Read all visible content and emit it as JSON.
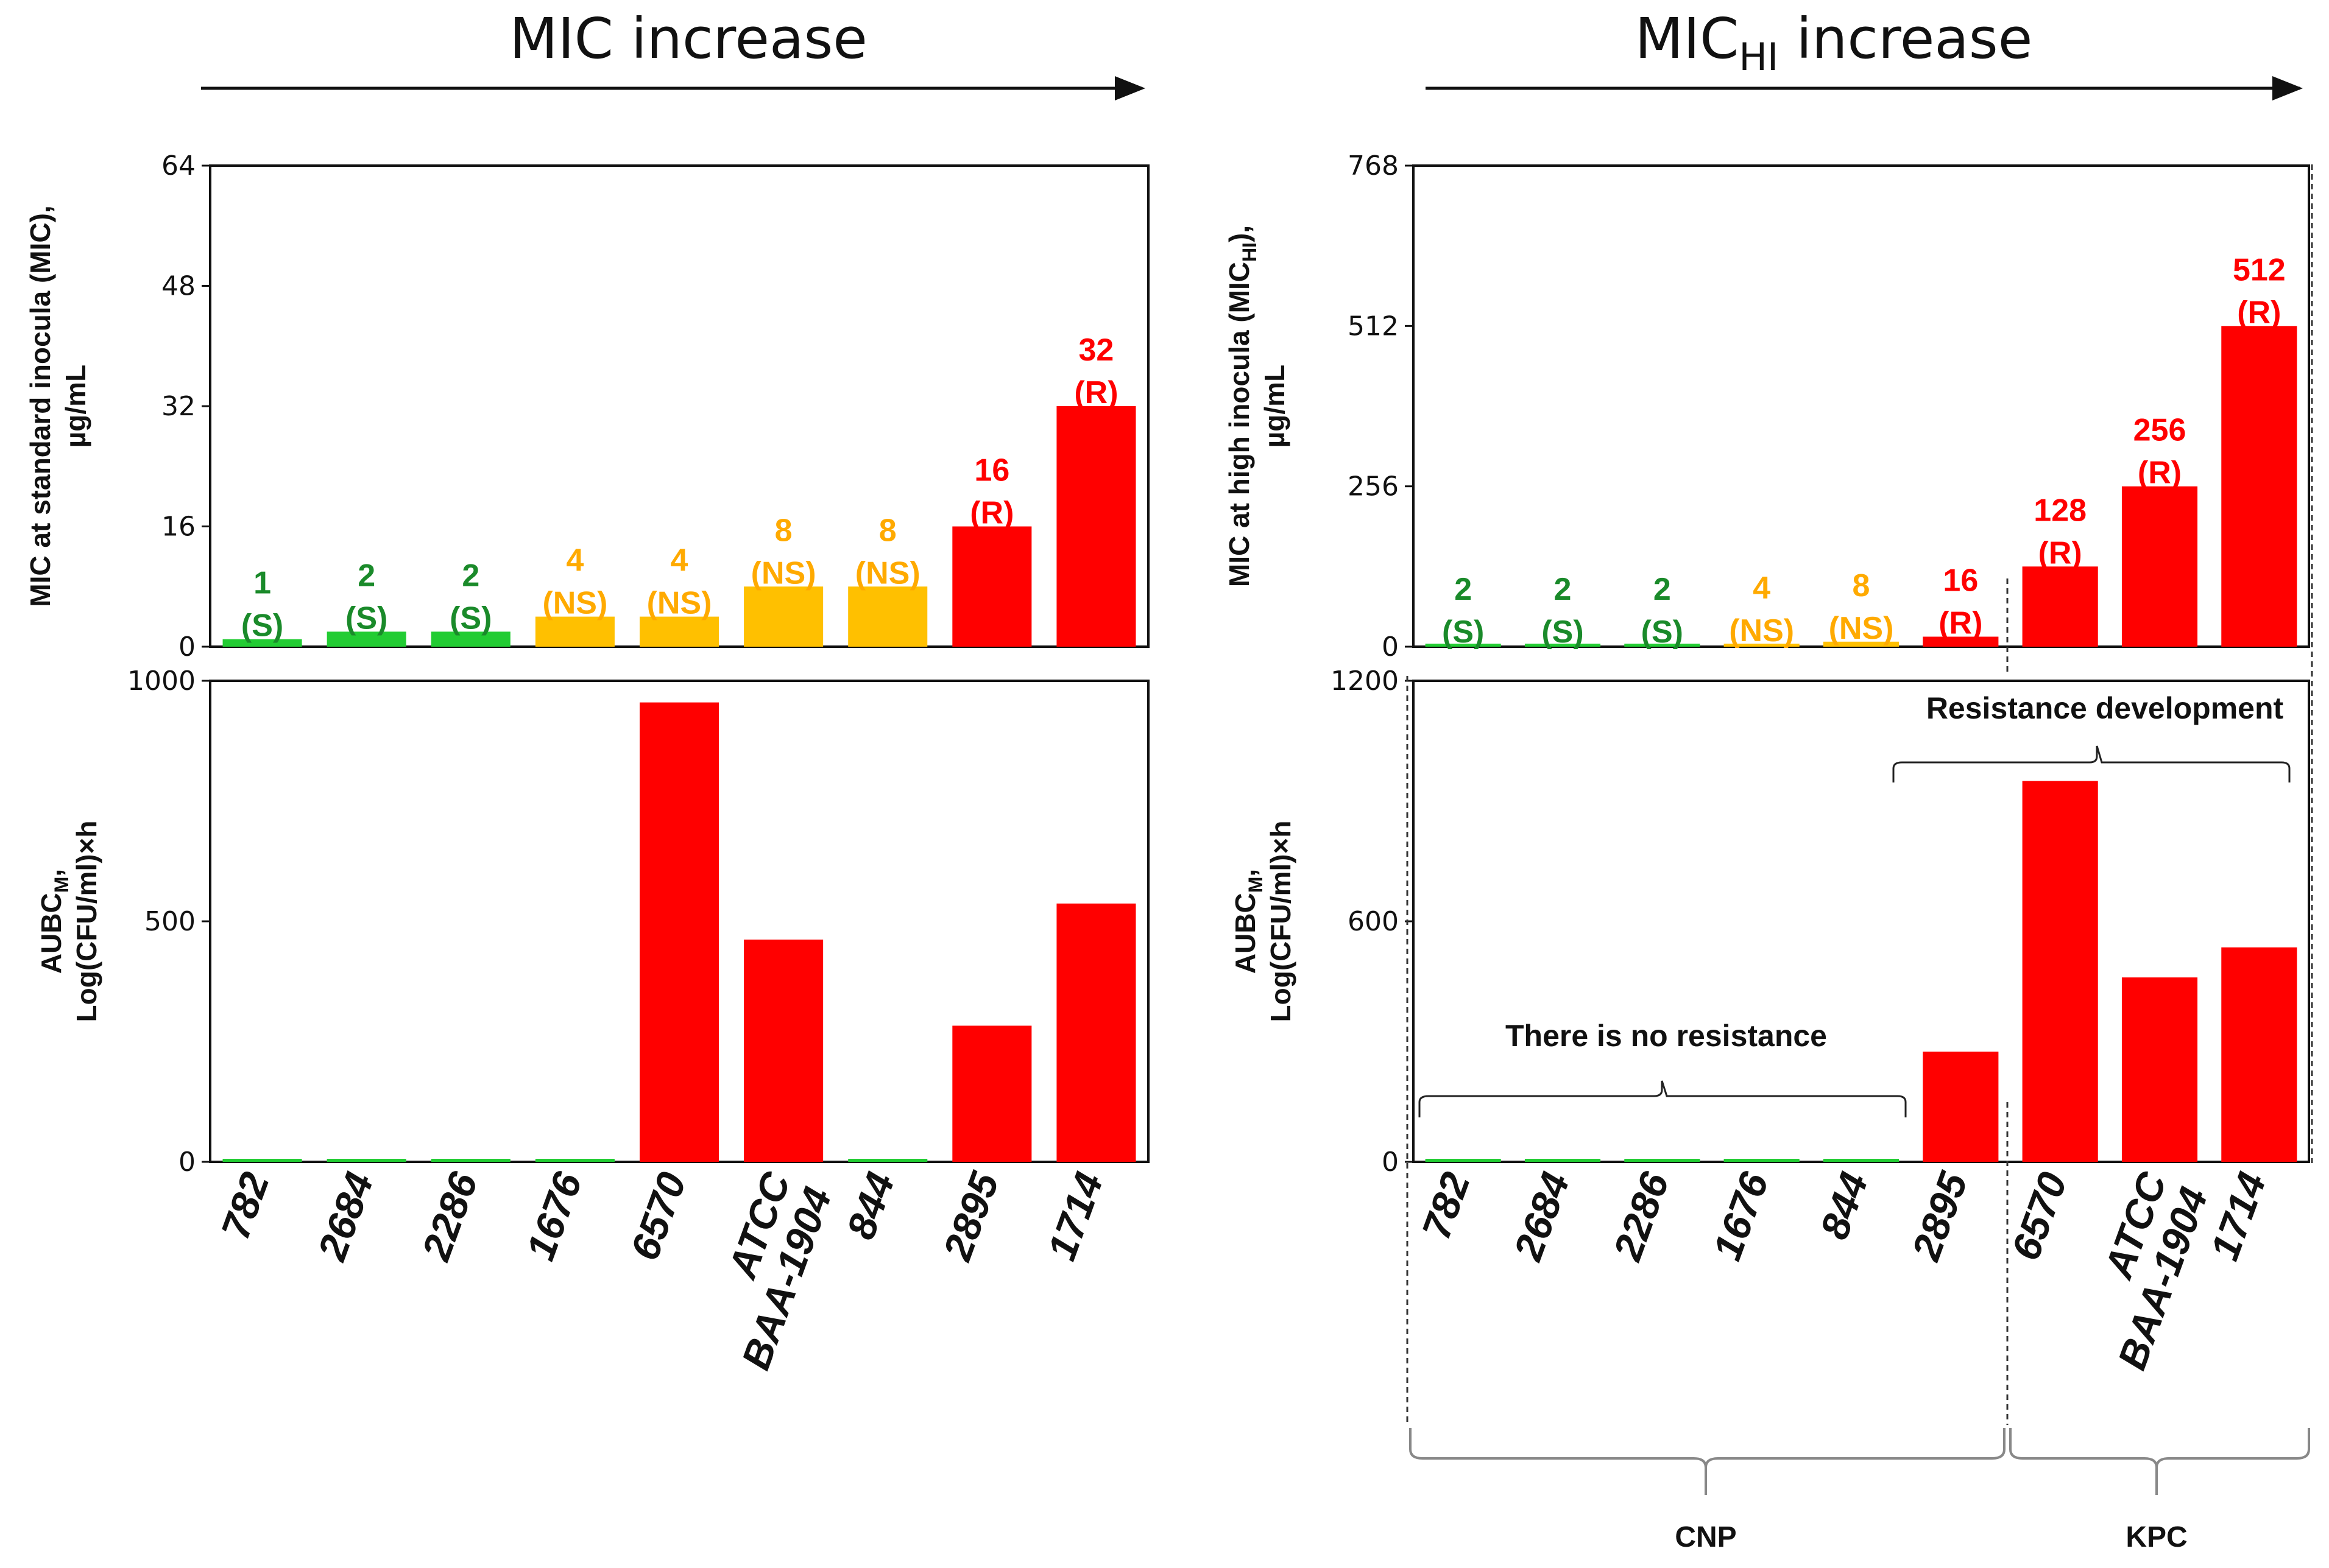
{
  "colors": {
    "S": "#22cc33",
    "NS": "#ffc000",
    "R": "#ff0000",
    "S_label": "#1a8a2a",
    "NS_label": "#ffaa00",
    "R_label": "#ff0000"
  },
  "headers": {
    "left": "MIC increase",
    "right_main": "MIC",
    "right_sub": "HI",
    "right_rest": " increase"
  },
  "chart_data": [
    {
      "id": "left_top",
      "type": "bar",
      "ylabel_line1": "MIC at standard inocula (MIC),",
      "ylabel_line2": "µg/mL",
      "ylim": [
        0,
        64
      ],
      "yticks": [
        "0",
        "16",
        "32",
        "48",
        "64"
      ],
      "categories": [
        "782",
        "2684",
        "2286",
        "1676",
        "6570",
        "ATCC BAA-1904",
        "844",
        "2895",
        "1714"
      ],
      "values": [
        1,
        2,
        2,
        4,
        4,
        8,
        8,
        16,
        32
      ],
      "status": [
        "S",
        "S",
        "S",
        "NS",
        "NS",
        "NS",
        "NS",
        "R",
        "R"
      ],
      "value_labels": [
        "1",
        "2",
        "2",
        "4",
        "4",
        "8",
        "8",
        "16",
        "32"
      ],
      "status_labels": [
        "(S)",
        "(S)",
        "(S)",
        "(NS)",
        "(NS)",
        "(NS)",
        "(NS)",
        "(R)",
        "(R)"
      ]
    },
    {
      "id": "left_bottom",
      "type": "bar",
      "ylabel_line1": "AUBC",
      "ylabel_sub": "M",
      "ylabel_line1_tail": ",",
      "ylabel_line2": "Log(CFU/ml)×h",
      "ylim": [
        0,
        1000
      ],
      "yticks": [
        "0",
        "500",
        "1000"
      ],
      "categories": [
        "782",
        "2684",
        "2286",
        "1676",
        "6570",
        "ATCC BAA-1904",
        "844",
        "2895",
        "1714"
      ],
      "values": [
        5,
        5,
        5,
        5,
        955,
        462,
        5,
        283,
        537
      ],
      "status": [
        "S",
        "S",
        "S",
        "S",
        "R",
        "R",
        "S",
        "R",
        "R"
      ]
    },
    {
      "id": "right_top",
      "type": "bar",
      "ylabel_line1": "MIC at high inocula (MIC",
      "ylabel_sub": "HI",
      "ylabel_line1_tail": "),",
      "ylabel_line2": "µg/mL",
      "ylim": [
        0,
        768
      ],
      "yticks": [
        "0",
        "256",
        "512",
        "768"
      ],
      "categories": [
        "782",
        "2684",
        "2286",
        "1676",
        "844",
        "2895",
        "6570",
        "ATCC BAA-1904",
        "1714"
      ],
      "values": [
        2,
        2,
        2,
        4,
        8,
        16,
        128,
        256,
        512
      ],
      "status": [
        "S",
        "S",
        "S",
        "NS",
        "NS",
        "R",
        "R",
        "R",
        "R"
      ],
      "value_labels": [
        "2",
        "2",
        "2",
        "4",
        "8",
        "16",
        "128",
        "256",
        "512"
      ],
      "status_labels": [
        "(S)",
        "(S)",
        "(S)",
        "(NS)",
        "(NS)",
        "(R)",
        "(R)",
        "(R)",
        "(R)"
      ]
    },
    {
      "id": "right_bottom",
      "type": "bar",
      "ylabel_line1": "AUBC",
      "ylabel_sub": "M",
      "ylabel_line1_tail": ",",
      "ylabel_line2": "Log(CFU/ml)×h",
      "ylim": [
        0,
        1200
      ],
      "yticks": [
        "0",
        "600",
        "1200"
      ],
      "categories": [
        "782",
        "2684",
        "2286",
        "1676",
        "844",
        "2895",
        "6570",
        "ATCC BAA-1904",
        "1714"
      ],
      "values": [
        5,
        5,
        5,
        5,
        5,
        275,
        950,
        460,
        535
      ],
      "status": [
        "S",
        "S",
        "S",
        "S",
        "S",
        "R",
        "R",
        "R",
        "R"
      ]
    }
  ],
  "annotations": {
    "no_resistance": "There is no resistance",
    "resistance_dev": "Resistance development",
    "group_cnp": "CNP",
    "group_kpc": "KPC"
  }
}
